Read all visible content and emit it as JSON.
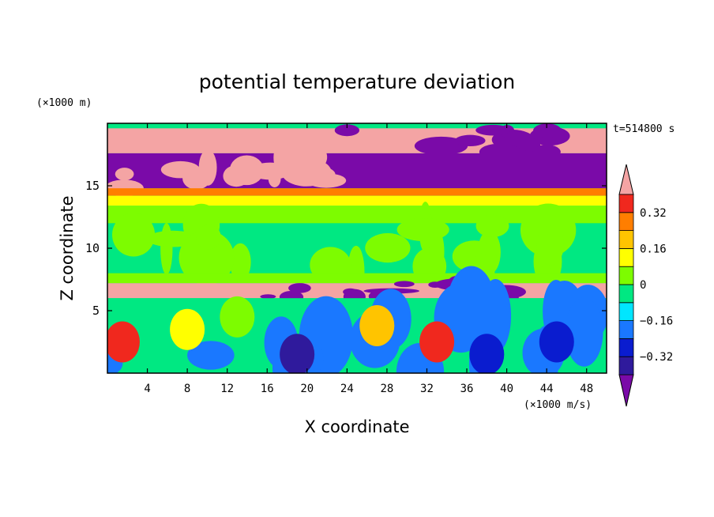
{
  "chart_data": {
    "type": "heatmap",
    "title": "potential temperature deviation",
    "xlabel": "X coordinate",
    "ylabel": "Z coordinate",
    "x_unit_label": "(×1000 m/s)",
    "y_unit_label": "(×1000 m)",
    "time_label": "t=514800 s",
    "xlim": [
      0,
      50
    ],
    "ylim": [
      0,
      20
    ],
    "x_ticks": [
      4,
      8,
      12,
      16,
      20,
      24,
      28,
      32,
      36,
      40,
      44,
      48
    ],
    "y_ticks": [
      5,
      10,
      15
    ],
    "colorbar": {
      "levels": [
        -0.4,
        -0.32,
        -0.24,
        -0.16,
        -0.08,
        0,
        0.08,
        0.16,
        0.24,
        0.32,
        0.4
      ],
      "tick_labels": [
        "0.32",
        "0.16",
        "0",
        "−0.16",
        "−0.32"
      ],
      "tick_values": [
        0.32,
        0.16,
        0,
        -0.16,
        -0.32
      ],
      "colors": [
        "#7a0aa8",
        "#2f1a9c",
        "#0a1ccf",
        "#1a78ff",
        "#00e6ff",
        "#00e882",
        "#7dfc00",
        "#ffff00",
        "#ffc400",
        "#ff7e00",
        "#f0281e",
        "#f4a4a4"
      ]
    },
    "bands": [
      {
        "z": [
          17.6,
          19.6
        ],
        "dominant": "#f4a4a4",
        "secondary": "#7a0aa8",
        "secondary_x": [
          24,
          46
        ]
      },
      {
        "z": [
          14.8,
          17.6
        ],
        "dominant": "#7a0aa8",
        "secondary": "#f4a4a4",
        "secondary_x": [
          0,
          22
        ]
      },
      {
        "z": [
          14.2,
          14.8
        ],
        "dominant": "#ff7e00"
      },
      {
        "z": [
          13.4,
          14.2
        ],
        "dominant": "#ffff00"
      },
      {
        "z": [
          12.0,
          13.4
        ],
        "dominant": "#7dfc00"
      },
      {
        "z": [
          8.0,
          12.0
        ],
        "dominant": "#00e882",
        "secondary": "#7dfc00"
      },
      {
        "z": [
          7.2,
          8.0
        ],
        "dominant": "#7dfc00"
      },
      {
        "z": [
          6.0,
          7.2
        ],
        "dominant": "#f4a4a4",
        "secondary": "#7a0aa8",
        "secondary_x": [
          14,
          40
        ]
      },
      {
        "z": [
          0,
          6.0
        ],
        "dominant": "#00e882",
        "secondary": "#1a78ff"
      }
    ]
  }
}
